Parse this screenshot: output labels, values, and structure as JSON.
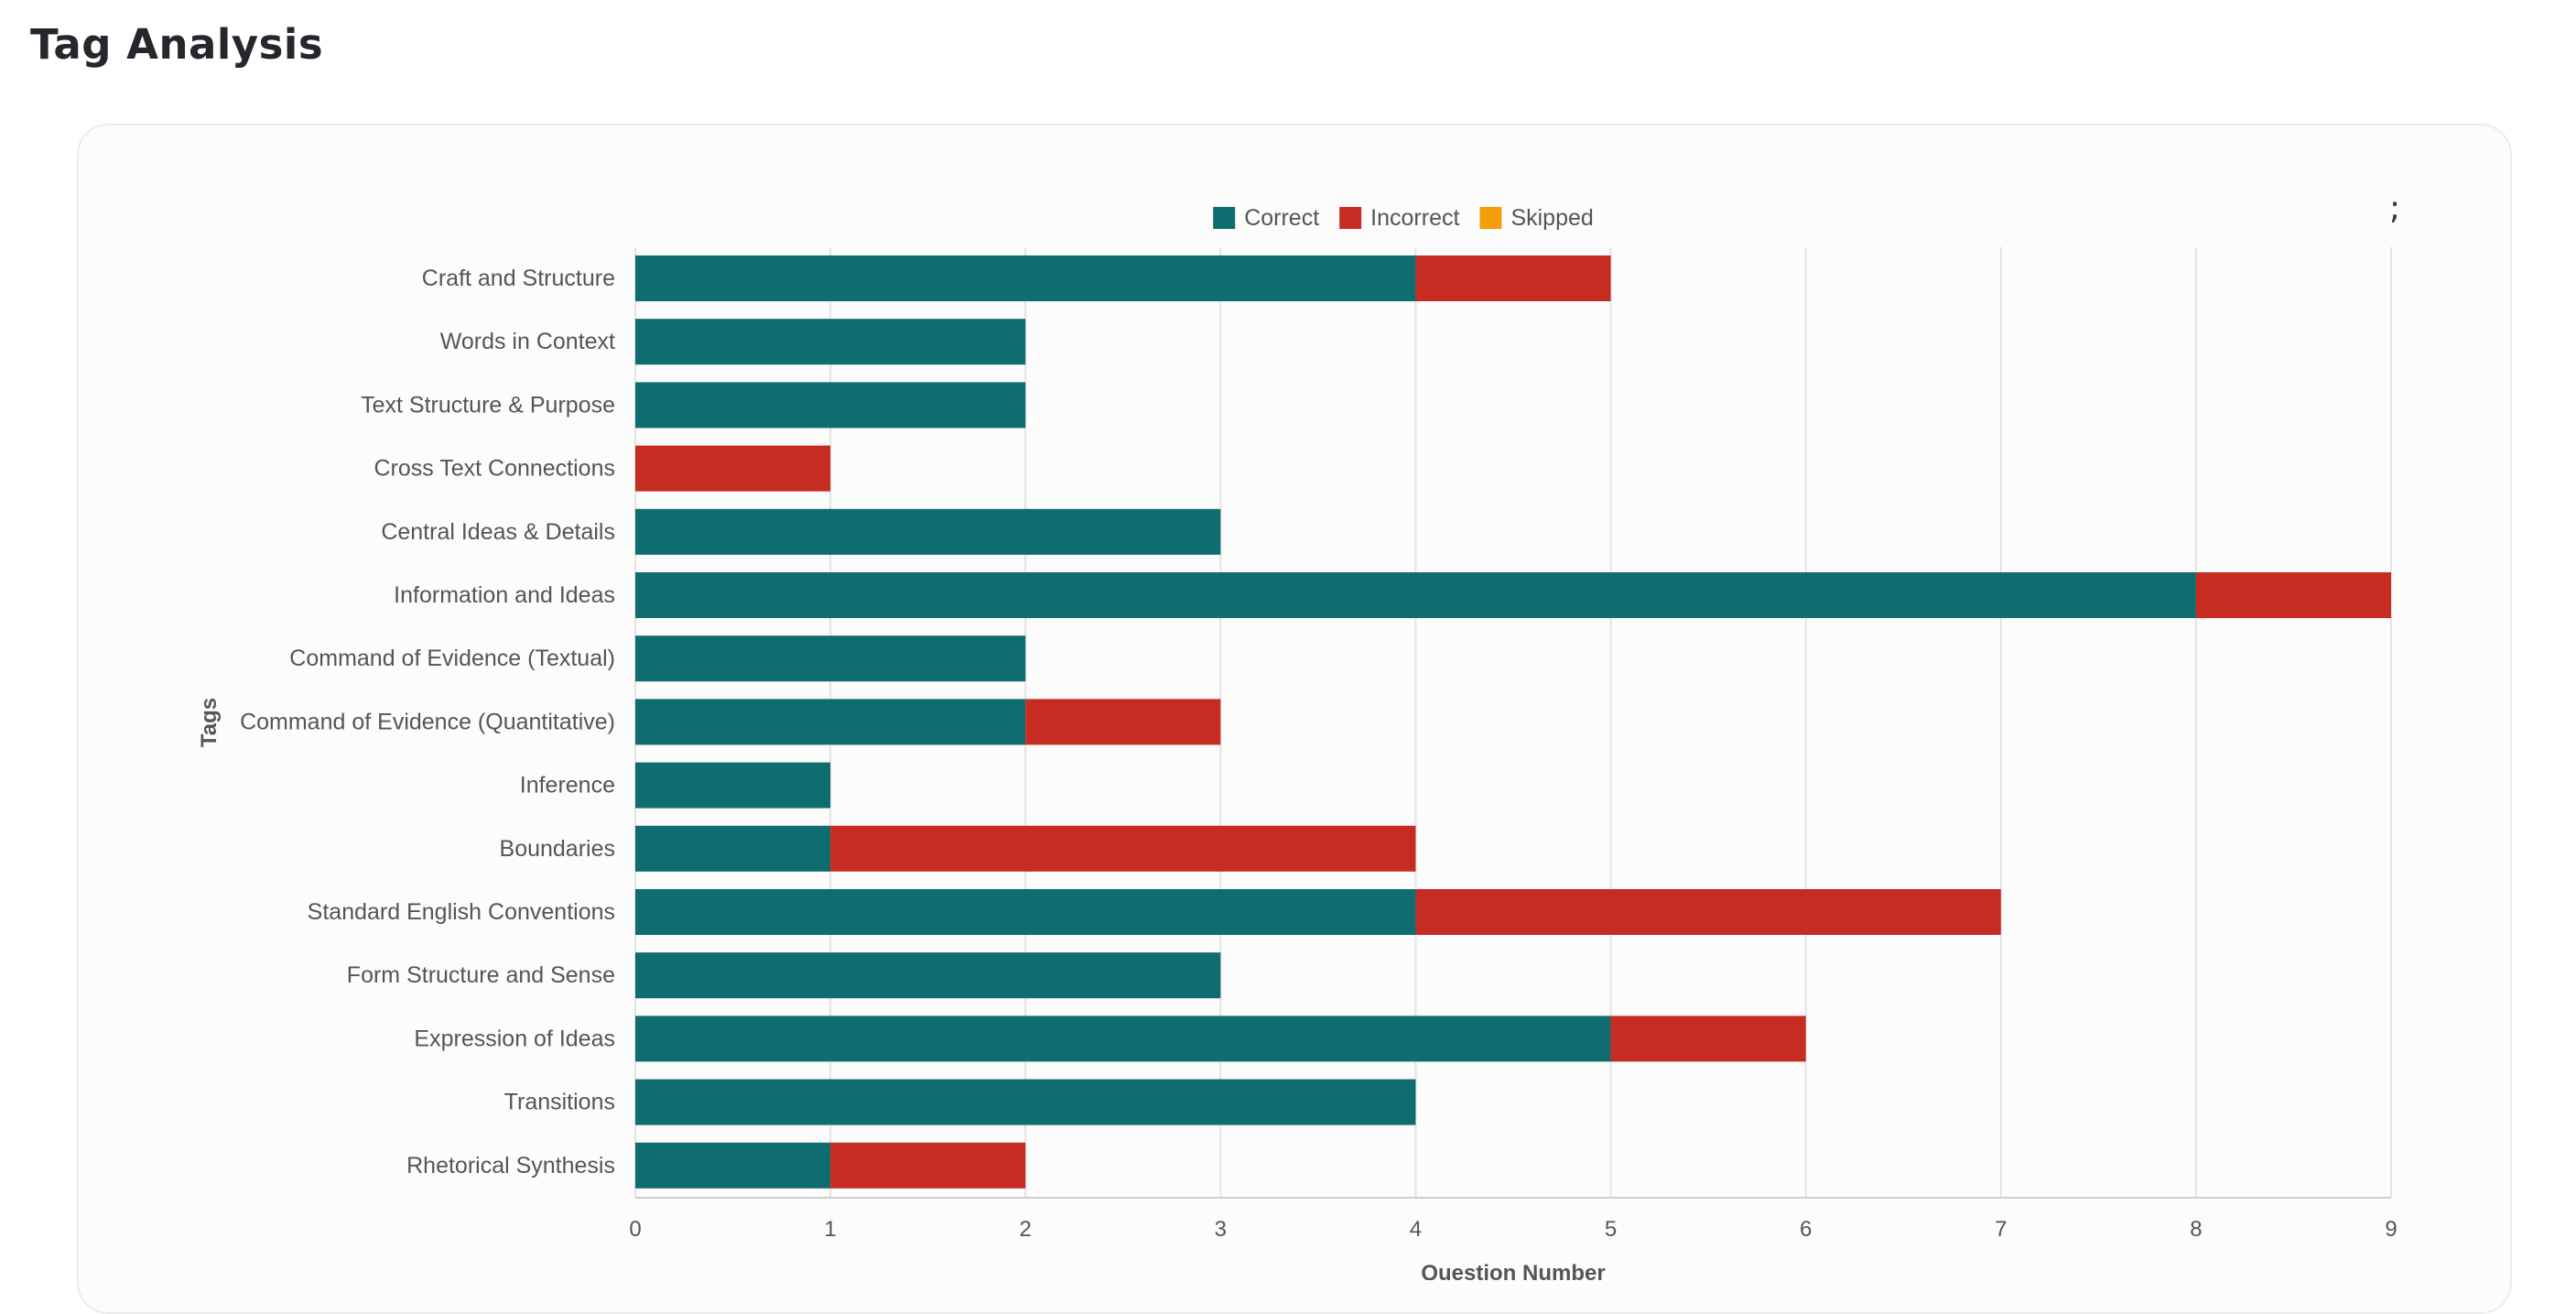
{
  "page": {
    "title": "Tag Analysis"
  },
  "chart_menu_glyph": ";",
  "colors": {
    "correct": "#0f6c6f",
    "incorrect": "#c62c21",
    "skipped": "#f59e0b",
    "grid": "#e3e3e3",
    "text": "#555555"
  },
  "chart_data": {
    "type": "bar",
    "orientation": "horizontal",
    "stacked": true,
    "categories": [
      "Craft and Structure",
      "Words in Context",
      "Text Structure & Purpose",
      "Cross Text Connections",
      "Central Ideas & Details",
      "Information and Ideas",
      "Command of Evidence (Textual)",
      "Command of Evidence (Quantitative)",
      "Inference",
      "Boundaries",
      "Standard English Conventions",
      "Form Structure and Sense",
      "Expression of Ideas",
      "Transitions",
      "Rhetorical Synthesis"
    ],
    "series": [
      {
        "name": "Correct",
        "color": "#0f6c6f",
        "values": [
          4,
          2,
          2,
          0,
          3,
          8,
          2,
          2,
          1,
          1,
          4,
          3,
          5,
          4,
          1
        ]
      },
      {
        "name": "Incorrect",
        "color": "#c62c21",
        "values": [
          1,
          0,
          0,
          1,
          0,
          1,
          0,
          1,
          0,
          3,
          3,
          0,
          1,
          0,
          1
        ]
      },
      {
        "name": "Skipped",
        "color": "#f59e0b",
        "values": [
          0,
          0,
          0,
          0,
          0,
          0,
          0,
          0,
          0,
          0,
          0,
          0,
          0,
          0,
          0
        ]
      }
    ],
    "xlabel": "Question Number",
    "ylabel": "Tags",
    "xlim": [
      0,
      9
    ],
    "xticks": [
      "0",
      "1",
      "2",
      "3",
      "4",
      "5",
      "6",
      "7",
      "8",
      "9"
    ],
    "grid": true,
    "legend_position": "top-center"
  }
}
